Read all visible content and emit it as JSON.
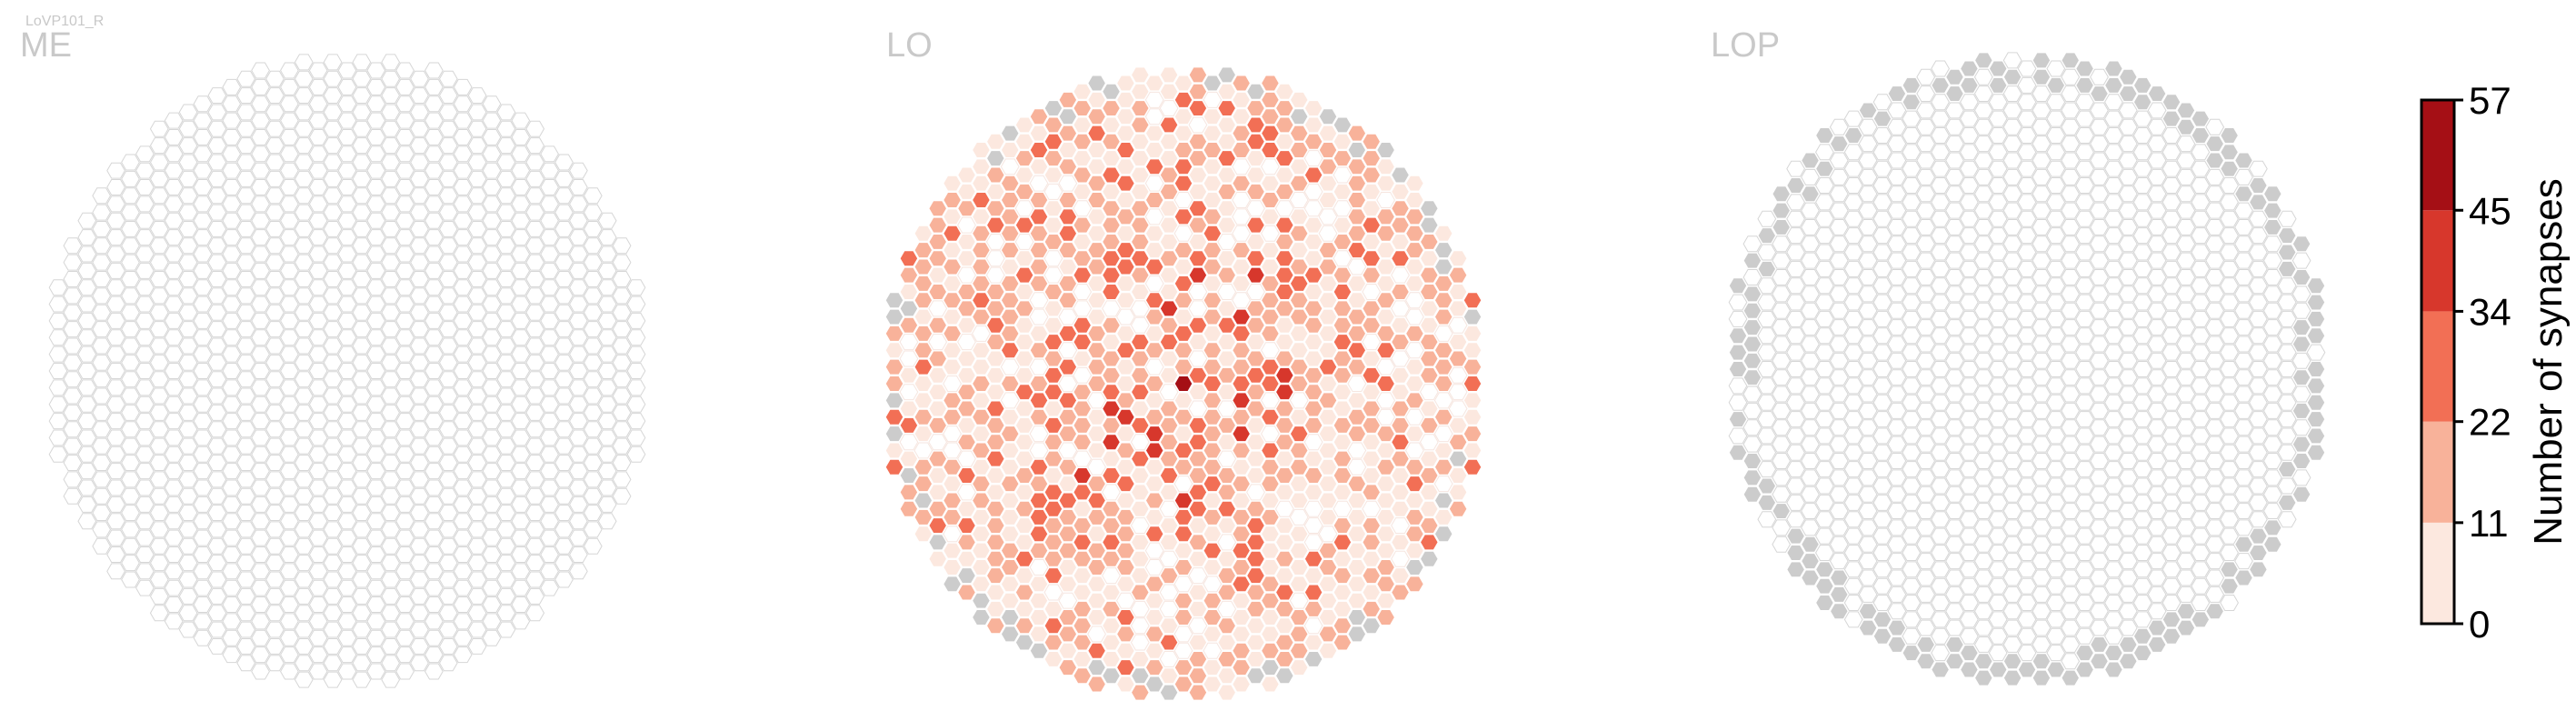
{
  "figure": {
    "title": "LoVP101_R"
  },
  "chart_data": [
    {
      "type": "heatmap",
      "panel": "ME",
      "title": "ME",
      "description_of_fill": "hexagonal column map; nearly all columns empty (outline only)",
      "nonzero_columns": [
        {
          "col": 28,
          "row": 7,
          "synapses": 3
        },
        {
          "col": 29,
          "row": 7,
          "synapses": 2
        }
      ]
    },
    {
      "type": "heatmap",
      "panel": "LO",
      "title": "LO",
      "value_bins": [
        {
          "range": [
            0,
            11
          ],
          "share": 0.34
        },
        {
          "range": [
            11,
            22
          ],
          "share": 0.38
        },
        {
          "range": [
            22,
            34
          ],
          "share": 0.19
        },
        {
          "range": [
            34,
            45
          ],
          "share": 0.07
        },
        {
          "range": [
            45,
            57
          ],
          "share": 0.02
        }
      ],
      "max_synapses": 57
    },
    {
      "type": "heatmap",
      "panel": "LOP",
      "title": "LOP",
      "description_of_fill": "all columns empty; outer rim columns shown grey (no data)"
    }
  ],
  "colorbar": {
    "label": "Number of synapses",
    "ticks": [
      "57",
      "45",
      "34",
      "22",
      "11",
      "0"
    ],
    "bins": [
      {
        "from": 0,
        "to": 11,
        "color": "#fce8df"
      },
      {
        "from": 11,
        "to": 22,
        "color": "#f8b29a"
      },
      {
        "from": 22,
        "to": 34,
        "color": "#f26f55"
      },
      {
        "from": 34,
        "to": 45,
        "color": "#d7372c"
      },
      {
        "from": 45,
        "to": 57,
        "color": "#a50f15"
      }
    ]
  },
  "colors": {
    "empty_stroke": "#d6d6d6",
    "no_data_fill": "#cccccc",
    "level_colors": [
      "#fce8df",
      "#f8b29a",
      "#f26f55",
      "#d7372c",
      "#a50f15"
    ]
  }
}
